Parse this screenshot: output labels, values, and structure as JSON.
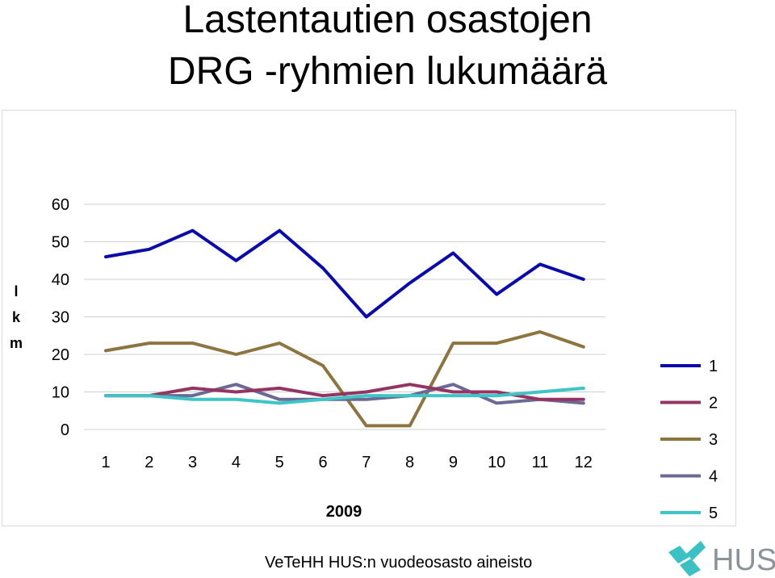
{
  "header": {
    "title_line1": "Lastentautien osastojen",
    "title_line2": "DRG -ryhmien lukumäärä"
  },
  "chart_data": {
    "type": "line",
    "ylabel_chars": [
      "l",
      "k",
      "m"
    ],
    "xlabel": "2009",
    "x": [
      1,
      2,
      3,
      4,
      5,
      6,
      7,
      8,
      9,
      10,
      11,
      12
    ],
    "x_tick_labels": [
      "1",
      "2",
      "3",
      "4",
      "5",
      "6",
      "7",
      "8",
      "9",
      "10",
      "11",
      "12"
    ],
    "ylim": [
      0,
      60
    ],
    "y_ticks": [
      0,
      10,
      20,
      30,
      40,
      50,
      60
    ],
    "y_tick_labels": [
      "0",
      "10",
      "20",
      "30",
      "40",
      "50",
      "60"
    ],
    "grid": true,
    "legend_position": "right",
    "series": [
      {
        "name": "1",
        "color": "#0b0ba8",
        "values": [
          46,
          48,
          53,
          45,
          53,
          43,
          30,
          39,
          47,
          36,
          44,
          40
        ]
      },
      {
        "name": "2",
        "color": "#943463",
        "values": [
          9,
          9,
          11,
          10,
          11,
          9,
          10,
          12,
          10,
          10,
          8,
          8
        ]
      },
      {
        "name": "3",
        "color": "#8d7541",
        "values": [
          21,
          23,
          23,
          20,
          23,
          17,
          1,
          1,
          23,
          23,
          26,
          22
        ]
      },
      {
        "name": "4",
        "color": "#6a6a94",
        "values": [
          9,
          9,
          9,
          12,
          8,
          8,
          8,
          9,
          12,
          7,
          8,
          7
        ]
      },
      {
        "name": "5",
        "color": "#40c4c8",
        "values": [
          9,
          9,
          8,
          8,
          7,
          8,
          9,
          9,
          9,
          9,
          10,
          11
        ]
      }
    ]
  },
  "footer": {
    "source": "VeTeHH HUS:n vuodeosasto aineisto"
  },
  "logo": {
    "text": "HUS",
    "icon": "hus-cross-logo-icon",
    "colors": {
      "mark": "#3cc0c4",
      "text": "#8c9299"
    }
  }
}
